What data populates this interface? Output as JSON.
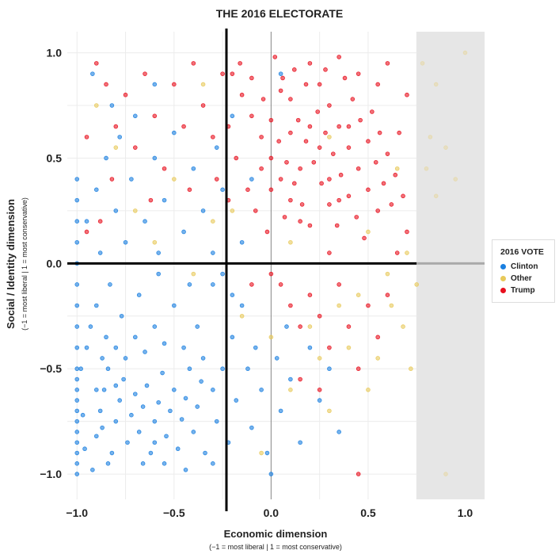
{
  "chart_data": {
    "type": "scatter",
    "title": "THE 2016 ELECTORATE",
    "xlabel": "Economic dimension",
    "xlabel_sub": "(−1 = most liberal | 1 = most conservative)",
    "ylabel": "Social / Identity dimension",
    "ylabel_sub": "(−1 = most liberal | 1 = most conservative)",
    "xlim": [
      -1.05,
      1.1
    ],
    "ylim": [
      -1.12,
      1.1
    ],
    "x_ticks": [
      "−1.0",
      "−0.5",
      "0.0",
      "0.5",
      "1.0"
    ],
    "x_tick_values": [
      -1,
      -0.5,
      0,
      0.5,
      1
    ],
    "y_ticks": [
      "1.0",
      "0.5",
      "0.0",
      "−0.5",
      "−1.0"
    ],
    "y_tick_values": [
      1,
      0.5,
      0,
      -0.5,
      -1
    ],
    "grid": true,
    "shaded_region_x": [
      0.75,
      1.1
    ],
    "reference_lines": {
      "vertical_x": -0.23,
      "horizontal_y": 0
    },
    "legend": {
      "title": "2016 VOTE",
      "placement": "right"
    },
    "series": [
      {
        "name": "Clinton",
        "color": "#1a7fe0",
        "points": [
          [
            -1,
            -1
          ],
          [
            -1,
            -0.9
          ],
          [
            -1,
            -0.8
          ],
          [
            -1,
            -0.7
          ],
          [
            -1,
            -0.6
          ],
          [
            -1,
            -0.5
          ],
          [
            -1,
            -0.4
          ],
          [
            -1,
            -0.3
          ],
          [
            -1,
            -0.2
          ],
          [
            -1,
            -0.1
          ],
          [
            -1,
            0
          ],
          [
            -1,
            0.1
          ],
          [
            -1,
            0.2
          ],
          [
            -1,
            0.3
          ],
          [
            -1,
            0.4
          ],
          [
            -1,
            -0.95
          ],
          [
            -1,
            -0.85
          ],
          [
            -1,
            -0.75
          ],
          [
            -1,
            -0.65
          ],
          [
            -1,
            -0.55
          ],
          [
            -0.92,
            -0.98
          ],
          [
            -0.9,
            -0.82
          ],
          [
            -0.88,
            -0.7
          ],
          [
            -0.86,
            -0.6
          ],
          [
            -0.84,
            -0.5
          ],
          [
            -0.82,
            -0.9
          ],
          [
            -0.8,
            -0.75
          ],
          [
            -0.78,
            -0.65
          ],
          [
            -0.76,
            -0.55
          ],
          [
            -0.74,
            -0.85
          ],
          [
            -0.72,
            -0.72
          ],
          [
            -0.7,
            -0.62
          ],
          [
            -0.68,
            -0.8
          ],
          [
            -0.66,
            -0.68
          ],
          [
            -0.64,
            -0.58
          ],
          [
            -0.62,
            -0.9
          ],
          [
            -0.6,
            -0.75
          ],
          [
            -0.58,
            -0.66
          ],
          [
            -0.56,
            -0.52
          ],
          [
            -0.54,
            -0.82
          ],
          [
            -0.52,
            -0.7
          ],
          [
            -0.5,
            -0.6
          ],
          [
            -0.48,
            -0.88
          ],
          [
            -0.46,
            -0.74
          ],
          [
            -0.44,
            -0.64
          ],
          [
            -0.42,
            -0.5
          ],
          [
            -0.4,
            -0.8
          ],
          [
            -0.38,
            -0.68
          ],
          [
            -0.36,
            -0.56
          ],
          [
            -0.34,
            -0.9
          ],
          [
            -0.95,
            -0.4
          ],
          [
            -0.93,
            -0.3
          ],
          [
            -0.9,
            -0.2
          ],
          [
            -0.87,
            -0.45
          ],
          [
            -0.85,
            -0.35
          ],
          [
            -0.83,
            -0.1
          ],
          [
            -0.8,
            -0.4
          ],
          [
            -0.77,
            -0.25
          ],
          [
            -0.75,
            -0.45
          ],
          [
            -0.7,
            -0.35
          ],
          [
            -0.68,
            -0.15
          ],
          [
            -0.65,
            -0.42
          ],
          [
            -0.6,
            -0.3
          ],
          [
            -0.58,
            -0.05
          ],
          [
            -0.55,
            -0.38
          ],
          [
            -0.5,
            -0.2
          ],
          [
            -0.45,
            -0.4
          ],
          [
            -0.42,
            -0.1
          ],
          [
            -0.38,
            -0.3
          ],
          [
            -0.35,
            -0.45
          ],
          [
            -0.3,
            -0.6
          ],
          [
            -0.28,
            -0.75
          ],
          [
            -0.25,
            -0.5
          ],
          [
            -0.22,
            -0.85
          ],
          [
            -0.2,
            -0.35
          ],
          [
            -0.18,
            -0.65
          ],
          [
            -0.15,
            -0.2
          ],
          [
            -0.12,
            -0.5
          ],
          [
            -0.1,
            -0.78
          ],
          [
            -0.08,
            -0.4
          ],
          [
            -0.05,
            -0.6
          ],
          [
            -0.02,
            -0.9
          ],
          [
            0,
            -1
          ],
          [
            0.03,
            -0.45
          ],
          [
            0.05,
            -0.7
          ],
          [
            0.08,
            -0.3
          ],
          [
            0.1,
            -0.55
          ],
          [
            0.15,
            -0.85
          ],
          [
            0.2,
            -0.4
          ],
          [
            0.25,
            -0.65
          ],
          [
            0.3,
            -0.5
          ],
          [
            0.35,
            -0.8
          ],
          [
            -0.3,
            -0.1
          ],
          [
            -0.25,
            -0.05
          ],
          [
            -0.2,
            -0.15
          ],
          [
            -0.95,
            0.2
          ],
          [
            -0.9,
            0.35
          ],
          [
            -0.88,
            0.05
          ],
          [
            -0.85,
            0.5
          ],
          [
            -0.8,
            0.25
          ],
          [
            -0.78,
            0.6
          ],
          [
            -0.75,
            0.1
          ],
          [
            -0.72,
            0.4
          ],
          [
            -0.7,
            0.7
          ],
          [
            -0.65,
            0.2
          ],
          [
            -0.6,
            0.5
          ],
          [
            -0.58,
            0.05
          ],
          [
            -0.55,
            0.3
          ],
          [
            -0.5,
            0.62
          ],
          [
            -0.45,
            0.15
          ],
          [
            -0.4,
            0.45
          ],
          [
            -0.35,
            0.25
          ],
          [
            -0.3,
            0.05
          ],
          [
            -0.28,
            0.55
          ],
          [
            -0.25,
            0.35
          ],
          [
            -0.2,
            0.7
          ],
          [
            -0.15,
            0.1
          ],
          [
            -0.1,
            0.4
          ],
          [
            0.05,
            0.9
          ],
          [
            -0.6,
            0.85
          ],
          [
            -0.82,
            0.75
          ],
          [
            -0.92,
            0.9
          ],
          [
            -0.98,
            -0.5
          ],
          [
            -0.97,
            -0.72
          ],
          [
            -0.96,
            -0.88
          ],
          [
            -0.9,
            -0.6
          ],
          [
            -0.87,
            -0.78
          ],
          [
            -0.84,
            -0.95
          ],
          [
            -0.8,
            -0.58
          ],
          [
            -0.66,
            -0.95
          ],
          [
            -0.6,
            -0.85
          ],
          [
            -0.55,
            -0.95
          ],
          [
            -0.44,
            -0.98
          ],
          [
            -0.3,
            -0.95
          ]
        ]
      },
      {
        "name": "Other",
        "color": "#e8c95a",
        "points": [
          [
            0.78,
            0.95
          ],
          [
            0.85,
            0.85
          ],
          [
            0.82,
            0.6
          ],
          [
            0.9,
            0.55
          ],
          [
            0.8,
            0.45
          ],
          [
            0.85,
            0.32
          ],
          [
            0.95,
            0.4
          ],
          [
            1,
            1
          ],
          [
            0.72,
            -0.5
          ],
          [
            0.68,
            -0.3
          ],
          [
            0.6,
            -0.05
          ],
          [
            0.55,
            -0.45
          ],
          [
            0.5,
            -0.6
          ],
          [
            0.4,
            -0.4
          ],
          [
            0.35,
            -0.2
          ],
          [
            0.3,
            -0.7
          ],
          [
            0.25,
            -0.45
          ],
          [
            0.62,
            -0.2
          ],
          [
            0.7,
            0.05
          ],
          [
            0.75,
            -0.1
          ],
          [
            0.45,
            -0.15
          ],
          [
            0.2,
            -0.3
          ],
          [
            0.1,
            -0.6
          ],
          [
            -0.05,
            -0.9
          ],
          [
            -0.3,
            0.2
          ],
          [
            -0.5,
            0.4
          ],
          [
            -0.7,
            0.25
          ],
          [
            -0.8,
            0.55
          ],
          [
            -0.9,
            0.75
          ],
          [
            -0.6,
            0.1
          ],
          [
            -0.4,
            -0.05
          ],
          [
            -0.2,
            0.25
          ],
          [
            0.1,
            0.1
          ],
          [
            0.3,
            0.6
          ],
          [
            0.5,
            0.15
          ],
          [
            -0.15,
            -0.25
          ],
          [
            0.9,
            -1
          ],
          [
            0.65,
            0.45
          ],
          [
            -0.35,
            0.85
          ],
          [
            0,
            -0.35
          ]
        ]
      },
      {
        "name": "Trump",
        "color": "#e8101e",
        "points": [
          [
            -0.2,
            0.9
          ],
          [
            -0.15,
            0.8
          ],
          [
            -0.1,
            0.7
          ],
          [
            -0.05,
            0.6
          ],
          [
            0,
            0.5
          ],
          [
            0.05,
            0.4
          ],
          [
            0.1,
            0.3
          ],
          [
            0.15,
            0.2
          ],
          [
            0.2,
            0.95
          ],
          [
            0.25,
            0.85
          ],
          [
            0.3,
            0.75
          ],
          [
            0.35,
            0.65
          ],
          [
            0.4,
            0.55
          ],
          [
            0.45,
            0.45
          ],
          [
            0.5,
            0.35
          ],
          [
            0.55,
            0.25
          ],
          [
            -0.18,
            0.5
          ],
          [
            -0.12,
            0.35
          ],
          [
            -0.08,
            0.25
          ],
          [
            -0.02,
            0.15
          ],
          [
            0.02,
            0.98
          ],
          [
            0.06,
            0.88
          ],
          [
            0.1,
            0.78
          ],
          [
            0.14,
            0.68
          ],
          [
            0.18,
            0.58
          ],
          [
            0.22,
            0.48
          ],
          [
            0.26,
            0.38
          ],
          [
            0.3,
            0.28
          ],
          [
            0.34,
            0.18
          ],
          [
            0.38,
            0.88
          ],
          [
            0.42,
            0.78
          ],
          [
            0.46,
            0.68
          ],
          [
            0.5,
            0.58
          ],
          [
            0.54,
            0.48
          ],
          [
            0.58,
            0.38
          ],
          [
            0.62,
            0.28
          ],
          [
            0.66,
            0.62
          ],
          [
            0.7,
            0.8
          ],
          [
            -0.22,
            0.65
          ],
          [
            -0.16,
            0.95
          ],
          [
            -0.1,
            0.88
          ],
          [
            -0.04,
            0.78
          ],
          [
            0,
            0.68
          ],
          [
            0.04,
            0.58
          ],
          [
            0.08,
            0.48
          ],
          [
            0.12,
            0.38
          ],
          [
            0.16,
            0.28
          ],
          [
            0.2,
            0.18
          ],
          [
            0.24,
            0.72
          ],
          [
            0.28,
            0.62
          ],
          [
            0.32,
            0.52
          ],
          [
            0.36,
            0.42
          ],
          [
            0.4,
            0.32
          ],
          [
            0.44,
            0.22
          ],
          [
            0.48,
            0.12
          ],
          [
            0.52,
            0.72
          ],
          [
            0.56,
            0.62
          ],
          [
            0.6,
            0.52
          ],
          [
            0.64,
            0.42
          ],
          [
            0.68,
            0.32
          ],
          [
            -0.9,
            0.95
          ],
          [
            -0.85,
            0.85
          ],
          [
            -0.8,
            0.65
          ],
          [
            -0.75,
            0.8
          ],
          [
            -0.7,
            0.55
          ],
          [
            -0.65,
            0.9
          ],
          [
            -0.6,
            0.7
          ],
          [
            -0.55,
            0.45
          ],
          [
            -0.5,
            0.85
          ],
          [
            -0.45,
            0.65
          ],
          [
            -0.4,
            0.95
          ],
          [
            -0.35,
            0.75
          ],
          [
            -0.3,
            0.6
          ],
          [
            -0.28,
            0.4
          ],
          [
            -0.25,
            0.9
          ],
          [
            -0.22,
            0.3
          ],
          [
            -0.42,
            0.35
          ],
          [
            -0.62,
            0.3
          ],
          [
            -0.82,
            0.4
          ],
          [
            -0.95,
            0.6
          ],
          [
            -0.95,
            0.15
          ],
          [
            -0.88,
            0.2
          ],
          [
            0.05,
            -0.1
          ],
          [
            0.1,
            -0.2
          ],
          [
            0.15,
            -0.3
          ],
          [
            0.2,
            -0.15
          ],
          [
            0.25,
            -0.25
          ],
          [
            0.3,
            -0.4
          ],
          [
            0.35,
            -0.1
          ],
          [
            0.4,
            -0.3
          ],
          [
            0.45,
            -0.5
          ],
          [
            0.5,
            -0.2
          ],
          [
            0.55,
            -0.35
          ],
          [
            0.6,
            -0.15
          ],
          [
            0.45,
            -1
          ],
          [
            0.25,
            -0.6
          ],
          [
            0.15,
            -0.55
          ],
          [
            0,
            -0.05
          ],
          [
            -0.1,
            -0.1
          ],
          [
            0.65,
            0.05
          ],
          [
            0.7,
            0.15
          ],
          [
            0.3,
            0.05
          ],
          [
            0.05,
            0.82
          ],
          [
            0.12,
            0.92
          ],
          [
            0.18,
            0.85
          ],
          [
            0.28,
            0.92
          ],
          [
            0.35,
            0.98
          ],
          [
            0.1,
            0.62
          ],
          [
            0.2,
            0.65
          ],
          [
            0,
            0.35
          ],
          [
            0.07,
            0.22
          ],
          [
            0.25,
            0.55
          ],
          [
            0.35,
            0.3
          ],
          [
            0.45,
            0.9
          ],
          [
            0.55,
            0.85
          ],
          [
            0.6,
            0.95
          ],
          [
            -0.05,
            0.45
          ],
          [
            0.15,
            0.45
          ],
          [
            0.3,
            0.4
          ],
          [
            0.4,
            0.65
          ]
        ]
      }
    ]
  }
}
